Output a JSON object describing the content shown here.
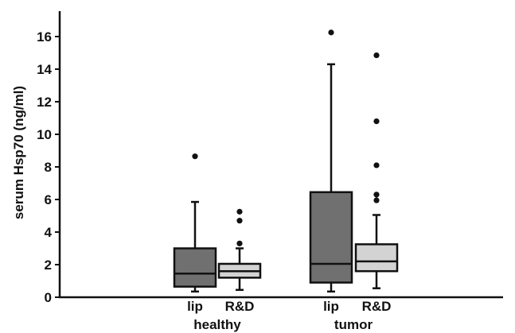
{
  "chart_data": {
    "type": "boxplot",
    "title": "",
    "xlabel": "",
    "ylabel": "serum Hsp70 (ng/ml)",
    "ylim": [
      0,
      17
    ],
    "yticks": [
      0,
      2,
      4,
      6,
      8,
      10,
      12,
      14,
      16
    ],
    "grid": false,
    "groups": [
      {
        "label": "healthy",
        "boxes": [
          {
            "label": "lip",
            "color": "#707070",
            "whisker_low": 0.35,
            "q1": 0.65,
            "median": 1.45,
            "q3": 3.0,
            "whisker_high": 5.85,
            "outliers": [
              8.65
            ]
          },
          {
            "label": "R&D",
            "color": "#d3d3d3",
            "whisker_low": 0.45,
            "q1": 1.2,
            "median": 1.6,
            "q3": 2.05,
            "whisker_high": 3.0,
            "outliers": [
              3.3,
              4.7,
              5.25
            ]
          }
        ]
      },
      {
        "label": "tumor",
        "boxes": [
          {
            "label": "lip",
            "color": "#707070",
            "whisker_low": 0.35,
            "q1": 0.9,
            "median": 2.05,
            "q3": 6.45,
            "whisker_high": 14.3,
            "outliers": [
              16.25
            ]
          },
          {
            "label": "R&D",
            "color": "#d3d3d3",
            "whisker_low": 0.55,
            "q1": 1.6,
            "median": 2.2,
            "q3": 3.25,
            "whisker_high": 5.05,
            "outliers": [
              5.95,
              6.3,
              8.1,
              10.8,
              14.85
            ]
          }
        ]
      }
    ]
  }
}
